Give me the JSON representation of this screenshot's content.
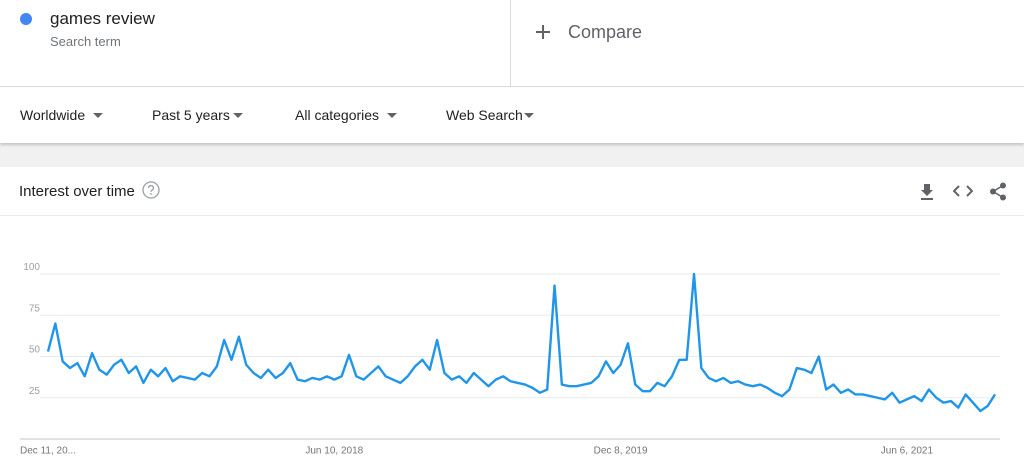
{
  "search_term": {
    "name": "games review",
    "subtitle": "Search term"
  },
  "compare": "Compare",
  "filters": [
    "Worldwide",
    "Past 5 years",
    "All categories",
    "Web Search"
  ],
  "chart_data": {
    "type": "line",
    "title": "Interest over time",
    "categories": [
      "Dec 11, 20...",
      null,
      null,
      null,
      null,
      null,
      null,
      null,
      null,
      null,
      null,
      null,
      null,
      null,
      null,
      null,
      null,
      null,
      null,
      null,
      null,
      null,
      null,
      null,
      null,
      null,
      null,
      null,
      null,
      null,
      null,
      null,
      null,
      null,
      null,
      null,
      null,
      null,
      null,
      "Jun 10, 2018",
      null,
      null,
      null,
      null,
      null,
      null,
      null,
      null,
      null,
      null,
      null,
      null,
      null,
      null,
      null,
      null,
      null,
      null,
      null,
      null,
      null,
      null,
      null,
      null,
      null,
      null,
      null,
      null,
      null,
      null,
      null,
      null,
      null,
      null,
      null,
      null,
      null,
      null,
      "Dec 8, 2019",
      null,
      null,
      null,
      null,
      null,
      null,
      null,
      null,
      null,
      null,
      null,
      null,
      null,
      null,
      null,
      null,
      null,
      null,
      null,
      null,
      null,
      null,
      null,
      null,
      null,
      null,
      null,
      null,
      null,
      null,
      null,
      null,
      null,
      null,
      null,
      null,
      null,
      null,
      "Jun 6, 2021",
      null,
      null,
      null,
      null,
      null,
      null,
      null,
      null,
      null,
      null,
      null,
      null
    ],
    "series": [
      {
        "name": "games review",
        "color": "#2196e8",
        "values": [
          53,
          70,
          47,
          43,
          46,
          38,
          52,
          42,
          39,
          45,
          48,
          40,
          44,
          34,
          42,
          38,
          43,
          35,
          38,
          37,
          36,
          40,
          38,
          44,
          60,
          48,
          62,
          45,
          40,
          37,
          42,
          37,
          40,
          46,
          36,
          35,
          37,
          36,
          38,
          36,
          38,
          51,
          38,
          36,
          40,
          44,
          38,
          36,
          34,
          38,
          44,
          48,
          42,
          60,
          40,
          36,
          38,
          34,
          40,
          36,
          32,
          36,
          38,
          35,
          34,
          33,
          31,
          28,
          30,
          93,
          33,
          32,
          32,
          33,
          34,
          38,
          47,
          40,
          45,
          58,
          33,
          29,
          29,
          34,
          32,
          38,
          48,
          48,
          100,
          43,
          37,
          35,
          37,
          34,
          35,
          33,
          32,
          33,
          31,
          28,
          26,
          30,
          43,
          42,
          40,
          50,
          30,
          33,
          28,
          30,
          27,
          27,
          26,
          25,
          24,
          28,
          22,
          24,
          26,
          23,
          30,
          25,
          22,
          23,
          19,
          27,
          22,
          17,
          20,
          27
        ]
      }
    ],
    "ylim": [
      0,
      100
    ],
    "yticks": [
      25,
      50,
      75,
      100
    ],
    "grid": true
  }
}
